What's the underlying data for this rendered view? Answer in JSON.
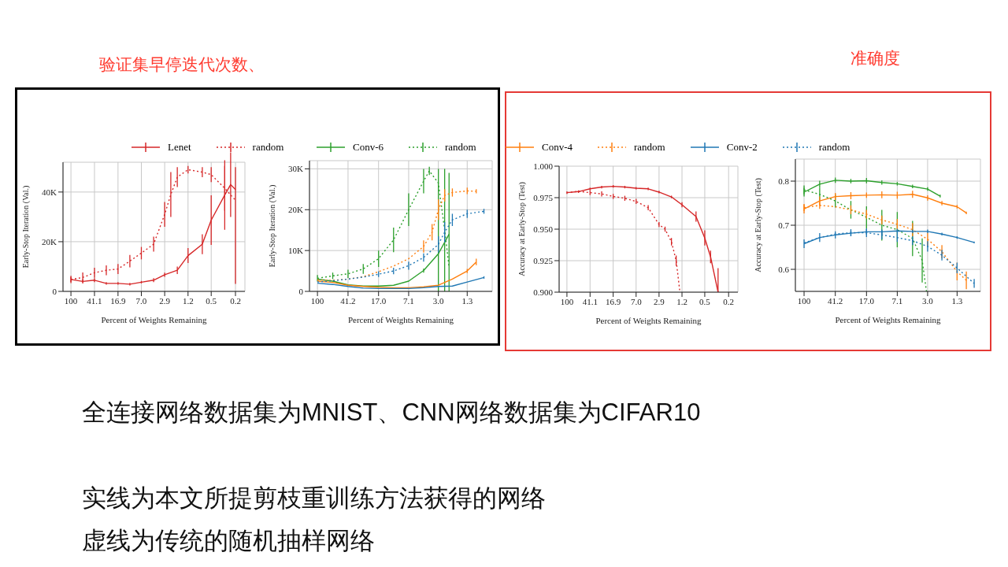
{
  "chart_data": [
    {
      "type": "line",
      "title": "验证集早停迭代次数、",
      "xlabel": "Percent of Weights Remaining",
      "ylabel": "Early-Stop Iteration (Val.)",
      "log": "x",
      "xlim": [
        135,
        0.14
      ],
      "xticks": [
        100,
        41.1,
        16.9,
        {
          "value": 7,
          "label": "7.0"
        },
        2.9,
        1.2,
        0.5,
        0.2
      ],
      "ylim": [
        0,
        52000
      ],
      "yticks": [
        0,
        {
          "value": 20000,
          "label": "20K"
        },
        {
          "value": 40000,
          "label": "40K"
        }
      ],
      "grid": true,
      "legend": "top",
      "series": [
        {
          "name": "Lenet",
          "color": "#d62728",
          "line_style": "solid",
          "x": [
            100,
            64,
            41.1,
            26.3,
            16.9,
            10.8,
            7.0,
            4.4,
            2.9,
            1.8,
            1.2,
            0.7,
            0.5,
            0.3,
            0.24,
            0.2
          ],
          "values": [
            4800,
            4000,
            4500,
            3200,
            3200,
            2900,
            3700,
            4500,
            6700,
            8500,
            14400,
            19000,
            28700,
            38800,
            43000,
            41000
          ],
          "errors": [
            1500,
            800,
            800,
            500,
            500,
            500,
            500,
            800,
            800,
            1500,
            3000,
            4000,
            10000,
            14000,
            13000,
            [
              3000,
              50000
            ]
          ]
        },
        {
          "name": "random",
          "color": "#d62728",
          "line_style": "dotted",
          "x": [
            100,
            64,
            41.1,
            26.3,
            16.9,
            10.8,
            7.0,
            4.4,
            2.9,
            2.3,
            1.8,
            1.2,
            0.7,
            0.5,
            0.3,
            0.2
          ],
          "values": [
            4800,
            5600,
            7500,
            8500,
            9000,
            12200,
            15400,
            19000,
            31000,
            39000,
            46000,
            49000,
            48000,
            47000,
            41500,
            36700
          ],
          "errors": [
            1000,
            2000,
            2000,
            2000,
            2000,
            2500,
            2500,
            3000,
            5000,
            9000,
            4000,
            1500,
            2000,
            3000,
            9000,
            null
          ]
        }
      ]
    },
    {
      "type": "line",
      "xlabel": "Percent of Weights Remaining",
      "ylabel": "Early-Stop Iteration (Val.)",
      "log": "x",
      "xlim": [
        126,
        0.63
      ],
      "xticks": [
        100,
        41.2,
        {
          "value": 17,
          "label": "17.0"
        },
        7.1,
        {
          "value": 3,
          "label": "3.0"
        },
        1.3
      ],
      "ylim": [
        0,
        32000
      ],
      "yticks": [
        0,
        {
          "value": 10000,
          "label": "10K"
        },
        {
          "value": 20000,
          "label": "20K"
        },
        {
          "value": 30000,
          "label": "30K"
        }
      ],
      "grid": true,
      "legend": "top",
      "series": [
        {
          "name": "Conv-6",
          "color": "#2ca02c",
          "line_style": "solid",
          "x": [
            100,
            64.2,
            41.2,
            26.5,
            17.0,
            11.0,
            7.1,
            4.6,
            3.0,
            2.2
          ],
          "values": [
            3000,
            2500,
            1600,
            1300,
            1300,
            1500,
            2500,
            5100,
            9200,
            14000
          ],
          "errors": [
            null,
            null,
            null,
            null,
            null,
            null,
            null,
            500,
            null,
            null
          ]
        },
        {
          "name": "random",
          "color": "#2ca02c",
          "line_style": "dotted",
          "x": [
            100,
            64.2,
            41.2,
            26.5,
            17.0,
            11.0,
            7.1,
            4.6,
            3.9,
            3.0,
            2.5,
            2.2
          ],
          "values": [
            3200,
            3800,
            4300,
            5500,
            8000,
            12600,
            20000,
            27000,
            29500,
            26500,
            15000,
            6000
          ],
          "errors": [
            800,
            800,
            1000,
            1200,
            2000,
            3000,
            4000,
            3000,
            1000,
            [
              0,
              30000
            ],
            [
              0,
              30000
            ],
            [
              0,
              29000
            ]
          ]
        },
        {
          "color": "#ff7f0e",
          "line_style": "solid",
          "x": [
            100,
            64.2,
            41.2,
            26.5,
            17.0,
            11.0,
            7.1,
            4.6,
            3.0,
            2.0,
            1.3,
            1.0
          ],
          "values": [
            2500,
            2200,
            1500,
            1200,
            1000,
            900,
            900,
            1100,
            1500,
            3000,
            5000,
            7200
          ],
          "errors": [
            null,
            null,
            null,
            null,
            null,
            null,
            null,
            null,
            null,
            null,
            500,
            800
          ]
        },
        {
          "color": "#ff7f0e",
          "line_style": "dotted",
          "x": [
            100,
            64.2,
            41.2,
            26.5,
            17.0,
            11.0,
            7.1,
            4.6,
            3.6,
            3.0,
            2.5,
            2.0,
            1.3,
            1.0
          ],
          "values": [
            2800,
            2700,
            3000,
            3600,
            4800,
            6200,
            8000,
            11000,
            14500,
            20000,
            23500,
            24200,
            24600,
            24500
          ],
          "errors": [
            null,
            null,
            null,
            null,
            null,
            null,
            null,
            1500,
            2000,
            2500,
            1500,
            1000,
            800,
            500
          ]
        },
        {
          "color": "#1f77b4",
          "line_style": "solid",
          "x": [
            100,
            64.2,
            41.2,
            26.5,
            17.0,
            11.0,
            7.1,
            4.6,
            3.0,
            2.0,
            1.3,
            0.8
          ],
          "values": [
            2000,
            1700,
            1200,
            800,
            700,
            700,
            700,
            900,
            1200,
            1300,
            2300,
            3400
          ],
          "errors": [
            null,
            null,
            null,
            null,
            null,
            null,
            null,
            null,
            null,
            null,
            null,
            300
          ]
        },
        {
          "color": "#1f77b4",
          "line_style": "dotted",
          "x": [
            100,
            64.2,
            41.2,
            26.5,
            17.0,
            11.0,
            7.1,
            4.6,
            3.0,
            2.5,
            2.0,
            1.3,
            0.8
          ],
          "values": [
            2300,
            2600,
            3000,
            3500,
            4200,
            5000,
            6300,
            8300,
            11500,
            14500,
            17500,
            19000,
            19600
          ],
          "errors": [
            null,
            null,
            null,
            null,
            700,
            800,
            1000,
            1000,
            2000,
            2500,
            1500,
            1000,
            600
          ]
        }
      ]
    },
    {
      "type": "line",
      "xlabel": "Percent of Weights Remaining",
      "ylabel": "Accuracy at Early-Stop (Test)",
      "log": "x",
      "xlim": [
        135,
        0.14
      ],
      "xticks": [
        100,
        41.1,
        16.9,
        {
          "value": 7,
          "label": "7.0"
        },
        2.9,
        1.2,
        0.5,
        0.2
      ],
      "ylim": [
        0.9,
        1.0
      ],
      "yticks": [
        {
          "value": 0.9,
          "label": "0.900"
        },
        0.925,
        {
          "value": 0.95,
          "label": "0.950"
        },
        0.975,
        {
          "value": 1,
          "label": "1.000"
        }
      ],
      "grid": true,
      "series": [
        {
          "color": "#d62728",
          "line_style": "solid",
          "x": [
            100,
            64,
            41.1,
            26.3,
            16.9,
            10.8,
            7.0,
            4.4,
            2.9,
            1.8,
            1.2,
            0.7,
            0.5,
            0.4,
            0.3
          ],
          "values": [
            0.979,
            0.9798,
            0.982,
            0.9834,
            0.984,
            0.9834,
            0.9825,
            0.982,
            0.9794,
            0.9756,
            0.9694,
            0.96,
            0.943,
            0.928,
            0.9
          ],
          "errors": [
            0.001,
            0.001,
            0.001,
            0.001,
            0.001,
            0.001,
            0.001,
            0.001,
            0.001,
            0.001,
            0.002,
            0.004,
            0.006,
            0.005,
            [
              0.9,
              0.919
            ]
          ]
        },
        {
          "color": "#d62728",
          "line_style": "dotted",
          "x": [
            100,
            64,
            41.1,
            26.3,
            16.9,
            10.8,
            7.0,
            4.4,
            2.9,
            2.3,
            1.8,
            1.5,
            1.3
          ],
          "values": [
            0.979,
            0.98,
            0.979,
            0.978,
            0.976,
            0.9745,
            0.972,
            0.967,
            0.9537,
            0.95,
            0.94,
            0.925,
            0.9
          ],
          "errors": [
            null,
            null,
            0.002,
            0.002,
            0.002,
            0.002,
            0.002,
            0.002,
            0.002,
            0.002,
            0.003,
            0.004,
            null
          ]
        }
      ]
    },
    {
      "type": "line",
      "title": "准确度",
      "xlabel": "Percent of Weights Remaining",
      "ylabel": "Accuracy at Early-Stop (Test)",
      "log": "x",
      "xlim": [
        128,
        0.67
      ],
      "xticks": [
        100,
        41.2,
        {
          "value": 17,
          "label": "17.0"
        },
        7.1,
        {
          "value": 3,
          "label": "3.0"
        },
        1.3
      ],
      "ylim": [
        0.55,
        0.85
      ],
      "yticks": [
        0.6,
        0.7,
        0.8
      ],
      "grid": true,
      "legend": "top",
      "annotations": [
        "全连接网络数据集为MNIST、CNN网络数据集为CIFAR10",
        "实线为本文所提剪枝重训练方法获得的网络",
        "虚线为传统的随机抽样网络"
      ],
      "series": [
        {
          "color": "#2ca02c",
          "line_style": "solid",
          "x": [
            100,
            64.2,
            41.2,
            26.5,
            17.0,
            11.0,
            7.1,
            4.6,
            3.0,
            2.1
          ],
          "values": [
            0.775,
            0.793,
            0.802,
            0.8,
            0.801,
            0.797,
            0.794,
            0.788,
            0.782,
            0.766
          ],
          "errors": [
            0.01,
            0.008,
            0.006,
            0.005,
            0.006,
            0.005,
            0.004,
            0.004,
            0.004,
            0.003
          ]
        },
        {
          "color": "#2ca02c",
          "line_style": "dotted",
          "x": [
            100,
            64.2,
            41.2,
            26.5,
            17.0,
            11.0,
            7.1,
            4.6,
            3.5,
            3.1
          ],
          "values": [
            0.78,
            0.77,
            0.755,
            0.735,
            0.718,
            0.7,
            0.69,
            0.67,
            0.62,
            0.55
          ],
          "errors": [
            0.01,
            0.015,
            0.015,
            0.02,
            0.025,
            0.035,
            0.04,
            0.04,
            0.05,
            null
          ]
        },
        {
          "name": "Conv-4",
          "color": "#ff7f0e",
          "line_style": "solid",
          "x": [
            100,
            64.2,
            41.2,
            26.5,
            17.0,
            11.0,
            7.1,
            4.6,
            3.0,
            2.0,
            1.3,
            1.0
          ],
          "values": [
            0.737,
            0.755,
            0.765,
            0.767,
            0.768,
            0.769,
            0.768,
            0.77,
            0.762,
            0.75,
            0.742,
            0.728
          ],
          "errors": [
            0.01,
            0.01,
            0.008,
            0.008,
            0.006,
            0.008,
            0.008,
            0.008,
            0.006,
            0.005,
            0.004,
            0.003
          ]
        },
        {
          "name": "random",
          "color": "#ff7f0e",
          "line_style": "dotted",
          "x": [
            100,
            64.2,
            41.2,
            26.5,
            17.0,
            11.0,
            7.1,
            4.6,
            3.0,
            2.0,
            1.3,
            1.0
          ],
          "values": [
            0.74,
            0.745,
            0.742,
            0.735,
            0.725,
            0.712,
            0.702,
            0.69,
            0.668,
            0.64,
            0.595,
            0.575
          ],
          "errors": [
            0.008,
            0.008,
            null,
            0.01,
            0.01,
            0.01,
            0.012,
            0.015,
            0.015,
            0.015,
            0.02,
            0.02
          ]
        },
        {
          "name": "Conv-2",
          "color": "#1f77b4",
          "line_style": "solid",
          "x": [
            100,
            64.2,
            41.2,
            26.5,
            17.0,
            11.0,
            7.1,
            4.6,
            3.0,
            2.0,
            1.3,
            0.8
          ],
          "values": [
            0.658,
            0.672,
            0.678,
            0.682,
            0.685,
            0.685,
            0.687,
            0.686,
            0.686,
            0.68,
            0.672,
            0.661
          ],
          "errors": [
            0.01,
            0.01,
            0.008,
            0.006,
            0.006,
            0.005,
            0.005,
            0.004,
            0.004,
            0.003,
            0.003,
            0.002
          ]
        },
        {
          "name": "random",
          "color": "#1f77b4",
          "line_style": "dotted",
          "x": [
            100,
            64.2,
            41.2,
            26.5,
            17.0,
            11.0,
            7.1,
            4.6,
            3.0,
            2.0,
            1.3,
            0.8
          ],
          "values": [
            0.66,
            0.672,
            0.68,
            0.683,
            0.683,
            0.678,
            0.672,
            0.665,
            0.652,
            0.632,
            0.603,
            0.568
          ],
          "errors": [
            null,
            null,
            null,
            0.008,
            0.01,
            0.01,
            0.01,
            0.01,
            0.012,
            0.012,
            0.012,
            0.01
          ]
        }
      ]
    }
  ]
}
